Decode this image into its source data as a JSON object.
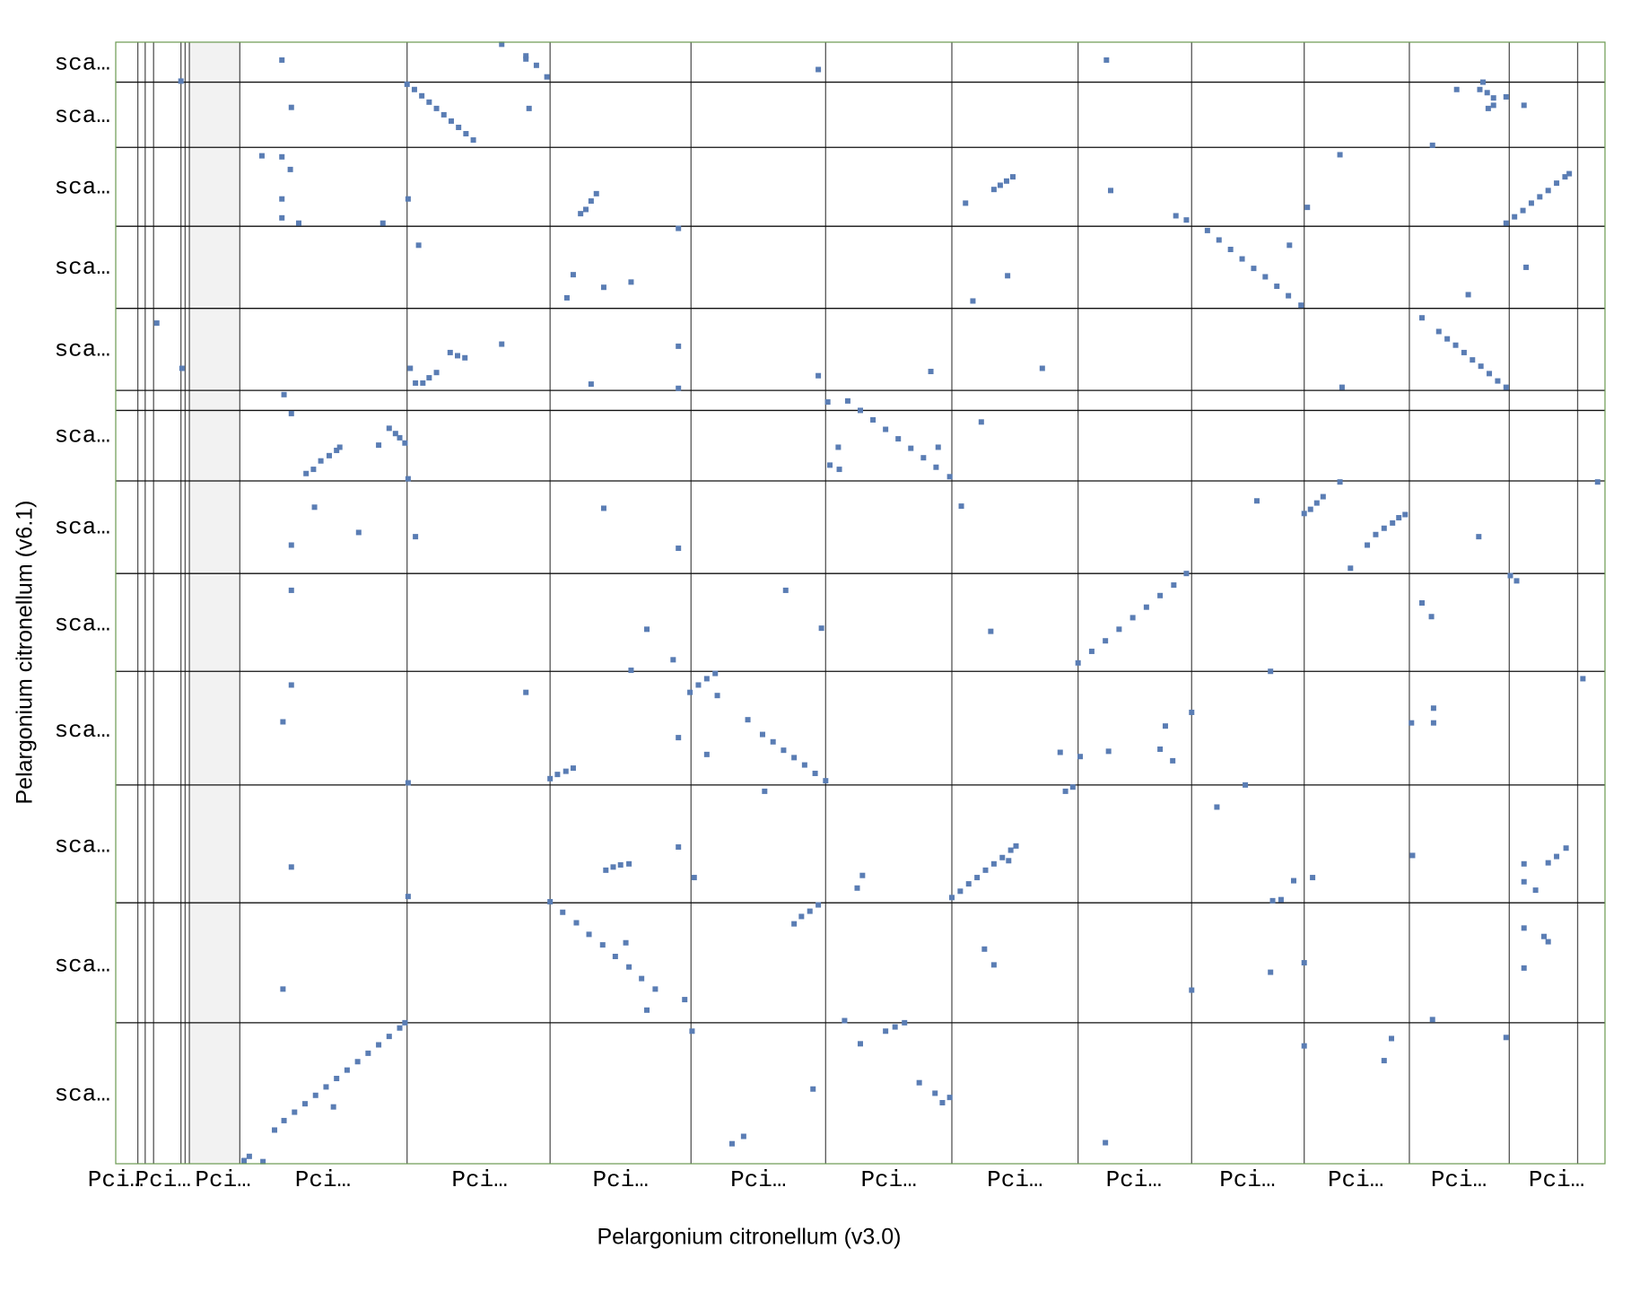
{
  "chart_data": {
    "type": "scatter",
    "x_label": "Pelargonium citronellum (v3.0)",
    "y_label": "Pelargonium citronellum (v6.1)",
    "color": "#5a7db4",
    "xlim": [
      0,
      1416
    ],
    "ylim": [
      0,
      1066
    ],
    "xticks": [
      {
        "value": 0,
        "label": "Pci…"
      },
      {
        "value": 45,
        "label": "Pci…"
      },
      {
        "value": 102,
        "label": "Pci…"
      },
      {
        "value": 197,
        "label": "Pci…"
      },
      {
        "value": 346,
        "label": "Pci…"
      },
      {
        "value": 480,
        "label": "Pci…"
      },
      {
        "value": 611,
        "label": "Pci…"
      },
      {
        "value": 735,
        "label": "Pci…"
      },
      {
        "value": 855,
        "label": "Pci…"
      },
      {
        "value": 968,
        "label": "Pci…"
      },
      {
        "value": 1076,
        "label": "Pci…"
      },
      {
        "value": 1179,
        "label": "Pci…"
      },
      {
        "value": 1277,
        "label": "Pci…"
      },
      {
        "value": 1370,
        "label": "Pci…"
      }
    ],
    "yticks": [
      {
        "value": 1046,
        "label": "sca…"
      },
      {
        "value": 996,
        "label": "sca…"
      },
      {
        "value": 928,
        "label": "sca…"
      },
      {
        "value": 852,
        "label": "sca…"
      },
      {
        "value": 774,
        "label": "sca…"
      },
      {
        "value": 692,
        "label": "sca…"
      },
      {
        "value": 605,
        "label": "sca…"
      },
      {
        "value": 513,
        "label": "sca…"
      },
      {
        "value": 412,
        "label": "sca…"
      },
      {
        "value": 302,
        "label": "sca…"
      },
      {
        "value": 189,
        "label": "sca…"
      },
      {
        "value": 66,
        "label": "sca…"
      }
    ],
    "xgrid": [
      21,
      28,
      36,
      62,
      66,
      70,
      118,
      277,
      413,
      547,
      675,
      795,
      915,
      1023,
      1130,
      1230,
      1325,
      1390
    ],
    "ygrid": [
      1028,
      966,
      891,
      813,
      735,
      716,
      649,
      561,
      468,
      360,
      248,
      134
    ],
    "x": [
      122,
      127,
      140,
      151,
      160,
      170,
      180,
      190,
      200,
      207,
      210,
      220,
      230,
      240,
      250,
      260,
      270,
      275,
      62,
      158,
      167,
      277,
      284,
      291,
      298,
      305,
      312,
      319,
      326,
      333,
      340,
      367,
      390,
      390,
      400,
      410,
      393,
      668,
      942,
      1275,
      1297,
      1300,
      1304,
      1310,
      1305,
      1310,
      1322,
      1339,
      139,
      158,
      166,
      158,
      158,
      174,
      254,
      278,
      442,
      447,
      452,
      457,
      808,
      835,
      841,
      847,
      853,
      946,
      1008,
      1018,
      1164,
      1133,
      1252,
      1322,
      1330,
      1338,
      1346,
      1354,
      1362,
      1370,
      1378,
      1382,
      288,
      435,
      429,
      464,
      490,
      535,
      815,
      848,
      1038,
      1049,
      1060,
      1071,
      1082,
      1093,
      1104,
      1115,
      1127,
      1116,
      1341,
      1286,
      39,
      63,
      280,
      285,
      292,
      298,
      305,
      318,
      325,
      332,
      367,
      535,
      452,
      535,
      668,
      775,
      881,
      1166,
      1242,
      1258,
      1266,
      1274,
      1282,
      1290,
      1298,
      1306,
      1314,
      1322,
      160,
      167,
      181,
      188,
      195,
      203,
      210,
      213,
      250,
      260,
      266,
      270,
      275,
      278,
      677,
      687,
      688,
      679,
      696,
      708,
      720,
      732,
      744,
      756,
      768,
      780,
      793,
      782,
      823,
      167,
      189,
      231,
      285,
      464,
      535,
      804,
      1085,
      1130,
      1136,
      1142,
      1148,
      1164,
      1174,
      1190,
      1198,
      1206,
      1214,
      1220,
      1226,
      1296,
      1409,
      167,
      505,
      490,
      530,
      637,
      671,
      832,
      915,
      928,
      941,
      954,
      967,
      980,
      993,
      1006,
      1018,
      1326,
      1332,
      1242,
      1251,
      1098,
      167,
      159,
      390,
      278,
      413,
      420,
      428,
      435,
      535,
      546,
      554,
      562,
      570,
      572,
      562,
      601,
      615,
      625,
      635,
      645,
      655,
      665,
      675,
      898,
      917,
      944,
      993,
      998,
      1005,
      1023,
      1232,
      1253,
      1253,
      1395,
      167,
      278,
      466,
      473,
      480,
      488,
      535,
      550,
      617,
      705,
      710,
      795,
      803,
      811,
      819,
      827,
      835,
      843,
      851,
      856,
      849,
      903,
      910,
      1047,
      1074,
      1100,
      1108,
      1120,
      1138,
      1233,
      1339,
      1339,
      1350,
      1362,
      1370,
      1379,
      159,
      413,
      425,
      438,
      450,
      463,
      475,
      488,
      500,
      513,
      485,
      505,
      541,
      645,
      652,
      660,
      668,
      826,
      835,
      1023,
      1098,
      1130,
      1252,
      1339,
      1339,
      1358,
      1362,
      548,
      586,
      597,
      663,
      693,
      708,
      732,
      741,
      750,
      764,
      779,
      786,
      793,
      941,
      1130,
      1206,
      1213,
      1322
    ],
    "values": [
      3,
      7,
      2,
      32,
      41,
      49,
      57,
      65,
      73,
      54,
      81,
      89,
      97,
      105,
      113,
      121,
      129,
      134,
      1029,
      1049,
      1004,
      1026,
      1021,
      1015,
      1009,
      1003,
      997,
      991,
      985,
      979,
      973,
      1064,
      1053,
      1050,
      1044,
      1033,
      1003,
      1040,
      1049,
      1021,
      1021,
      1028,
      1018,
      1013,
      1003,
      1006,
      1014,
      1006,
      958,
      957,
      945,
      917,
      899,
      894,
      894,
      917,
      903,
      907,
      915,
      922,
      913,
      926,
      930,
      934,
      938,
      925,
      901,
      897,
      959,
      909,
      968,
      894,
      900,
      906,
      913,
      919,
      925,
      932,
      938,
      941,
      873,
      845,
      823,
      833,
      838,
      889,
      820,
      844,
      887,
      878,
      869,
      860,
      851,
      843,
      834,
      825,
      816,
      873,
      852,
      826,
      799,
      756,
      756,
      742,
      742,
      747,
      752,
      771,
      768,
      766,
      779,
      777,
      741,
      737,
      749,
      753,
      756,
      738,
      804,
      791,
      784,
      778,
      771,
      764,
      758,
      751,
      744,
      738,
      731,
      713,
      656,
      660,
      668,
      673,
      678,
      681,
      683,
      699,
      694,
      690,
      685,
      651,
      724,
      681,
      660,
      664,
      725,
      716,
      707,
      698,
      689,
      680,
      671,
      662,
      653,
      681,
      705,
      588,
      624,
      600,
      596,
      623,
      585,
      625,
      630,
      618,
      622,
      628,
      634,
      648,
      566,
      588,
      598,
      604,
      609,
      614,
      617,
      596,
      648,
      545,
      508,
      469,
      479,
      545,
      509,
      506,
      476,
      487,
      497,
      508,
      519,
      529,
      540,
      550,
      561,
      559,
      554,
      533,
      520,
      468,
      455,
      420,
      448,
      362,
      366,
      370,
      373,
      376,
      405,
      448,
      455,
      461,
      466,
      445,
      389,
      422,
      408,
      401,
      393,
      386,
      379,
      371,
      364,
      391,
      387,
      392,
      394,
      416,
      383,
      429,
      419,
      433,
      419,
      461,
      282,
      254,
      279,
      282,
      284,
      285,
      301,
      272,
      354,
      262,
      274,
      253,
      259,
      266,
      272,
      279,
      285,
      291,
      298,
      302,
      288,
      354,
      358,
      339,
      360,
      250,
      251,
      269,
      272,
      293,
      285,
      268,
      260,
      286,
      292,
      300,
      166,
      249,
      239,
      229,
      218,
      208,
      197,
      187,
      176,
      166,
      210,
      146,
      156,
      228,
      235,
      240,
      246,
      204,
      189,
      165,
      182,
      191,
      137,
      224,
      186,
      216,
      211,
      126,
      19,
      26,
      71,
      136,
      114,
      126,
      130,
      134,
      77,
      67,
      58,
      63,
      20,
      112,
      98,
      119,
      120
    ]
  }
}
